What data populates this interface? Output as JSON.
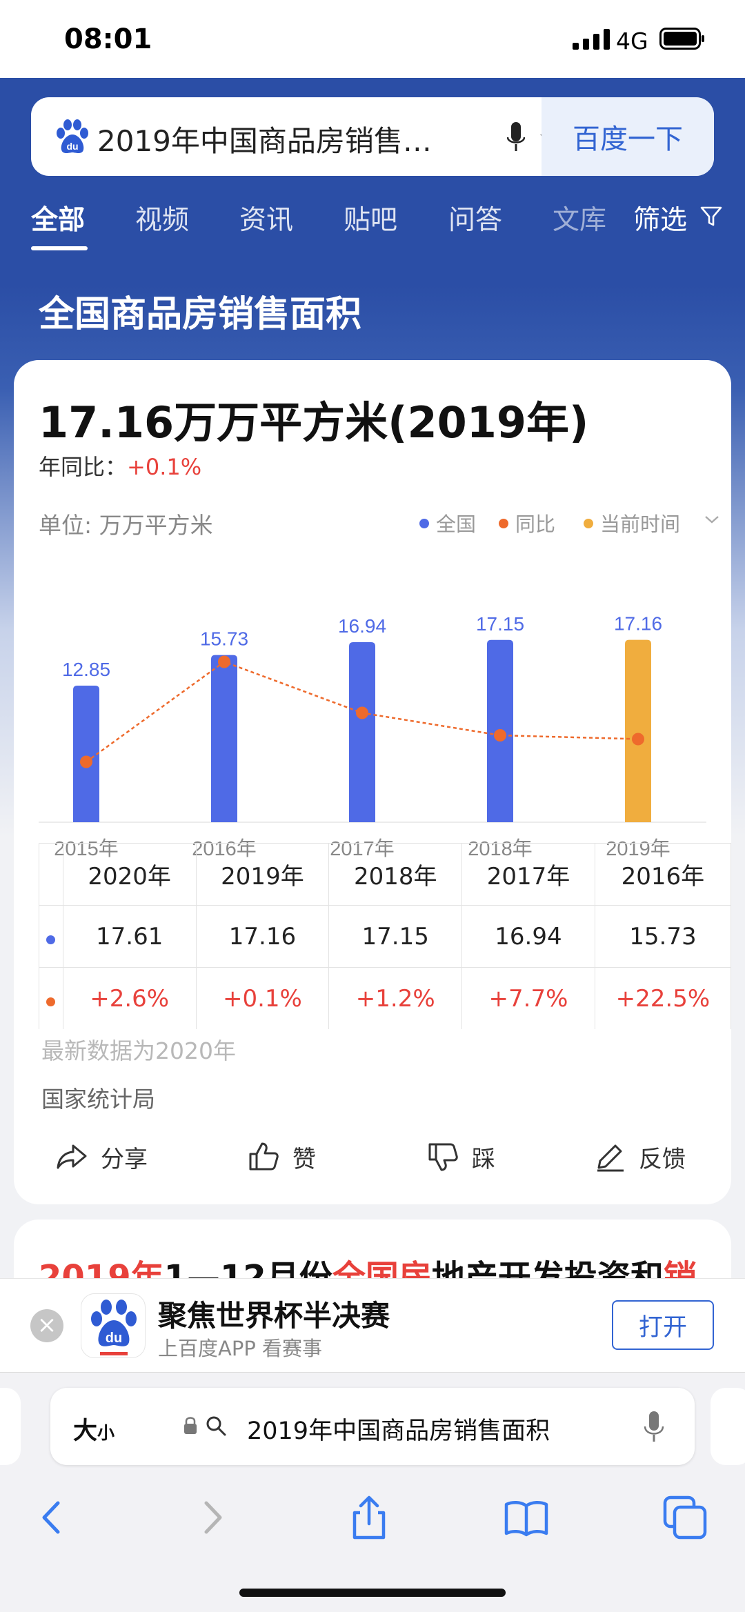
{
  "status_bar": {
    "time": "08:01",
    "network": "4G"
  },
  "search": {
    "query": "2019年中国商品房销售…",
    "button_label": "百度一下"
  },
  "tabs": [
    {
      "label": "全部",
      "active": true
    },
    {
      "label": "视频"
    },
    {
      "label": "资讯"
    },
    {
      "label": "贴吧"
    },
    {
      "label": "问答"
    },
    {
      "label": "文库"
    }
  ],
  "filter_label": "筛选",
  "section_title": "全国商品房销售面积",
  "card": {
    "headline": "17.16万万平方米(2019年)",
    "yoy_label": "年同比：",
    "yoy_value": "+0.1%",
    "unit": "单位: 万万平方米",
    "legend": [
      {
        "label": "全国",
        "color": "#4f6ae6"
      },
      {
        "label": "同比",
        "color": "#ee6a2c"
      },
      {
        "label": "当前时间",
        "color": "#f0ad3e"
      }
    ],
    "latest_note": "最新数据为2020年",
    "source": "国家统计局",
    "actions": {
      "share": "分享",
      "like": "赞",
      "dislike": "踩",
      "feedback": "反馈"
    }
  },
  "chart_data": {
    "type": "bar",
    "categories": [
      "2015年",
      "2016年",
      "2017年",
      "2018年",
      "2019年"
    ],
    "series": [
      {
        "name": "全国",
        "values": [
          12.85,
          15.73,
          16.94,
          17.15,
          17.16
        ],
        "colors": [
          "#4f6ae6",
          "#4f6ae6",
          "#4f6ae6",
          "#4f6ae6",
          "#f0ad3e"
        ]
      },
      {
        "name": "同比",
        "type": "line",
        "values": [
          -6.5,
          22.5,
          7.7,
          1.2,
          0.1
        ],
        "color": "#ee6a2c"
      }
    ],
    "value_labels": [
      "12.85",
      "15.73",
      "16.94",
      "17.15",
      "17.16"
    ],
    "grid": false,
    "legend_position": "top-right"
  },
  "table": {
    "headers": [
      "2020年",
      "2019年",
      "2018年",
      "2017年",
      "2016年"
    ],
    "rows": [
      {
        "dot_color": "#4f6ae6",
        "cells": [
          "17.61",
          "17.16",
          "17.15",
          "16.94",
          "15.73"
        ]
      },
      {
        "dot_color": "#ee6a2c",
        "cells": [
          "+2.6%",
          "+0.1%",
          "+1.2%",
          "+7.7%",
          "+22.5%"
        ]
      }
    ]
  },
  "next_card": {
    "title_parts": [
      "2019年",
      "1—12月份",
      "全国房",
      "地产开发投资和",
      "销"
    ]
  },
  "app_banner": {
    "title": "聚焦世界杯半决赛",
    "subtitle": "上百度APP 看赛事",
    "open_label": "打开"
  },
  "safari": {
    "text_size_label": "大",
    "text_size_small": "小",
    "url_text": "2019年中国商品房销售面积"
  },
  "icons": [
    "baidu-paw-icon",
    "mic-icon",
    "filter-icon",
    "share-icon",
    "thumbs-up-icon",
    "thumbs-down-icon",
    "edit-icon",
    "lock-icon",
    "search-icon",
    "back-icon",
    "forward-icon",
    "share-sheet-icon",
    "bookmarks-icon",
    "tabs-icon"
  ]
}
